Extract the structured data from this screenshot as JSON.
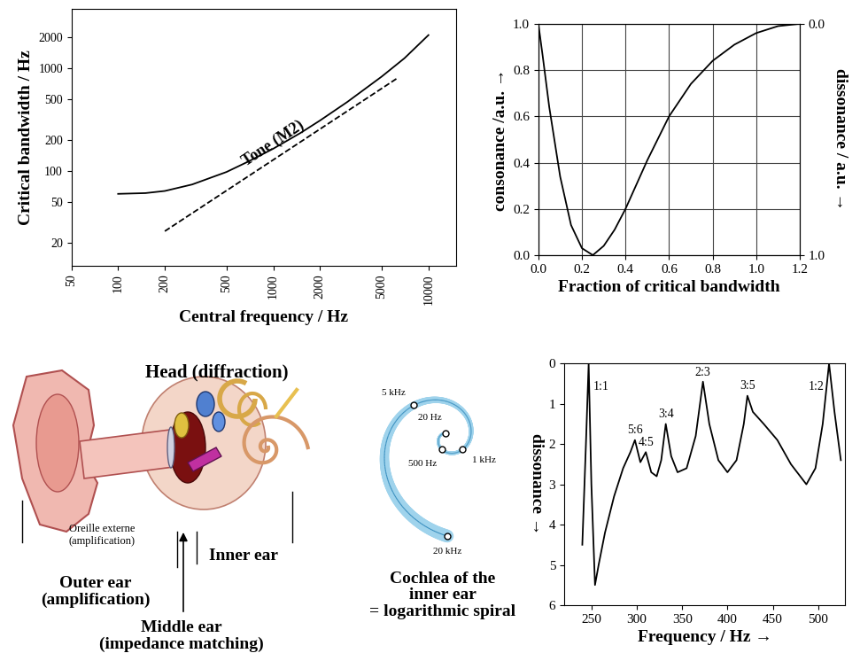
{
  "chart_data": [
    {
      "type": "line",
      "log": true,
      "grid": false,
      "xlabel": "Central frequency / Hz",
      "ylabel": "Critical bandwidth / Hz",
      "xlim": [
        50,
        15000
      ],
      "ylim": [
        12,
        3800
      ],
      "xticks": [
        50,
        100,
        200,
        500,
        1000,
        2000,
        5000,
        10000
      ],
      "yticks": [
        20,
        50,
        100,
        200,
        500,
        1000,
        2000
      ],
      "series": [
        {
          "color": "#000000",
          "line_style": "solid",
          "x": [
            100,
            150,
            200,
            300,
            500,
            700,
            1000,
            1500,
            2000,
            3000,
            5000,
            7000,
            10000
          ],
          "values": [
            60,
            61,
            64,
            74,
            98,
            125,
            165,
            235,
            310,
            470,
            830,
            1250,
            2100
          ]
        },
        {
          "name": "Tone (M2)",
          "color": "#000000",
          "line_style": "dashed",
          "x": [
            200,
            6300
          ],
          "values": [
            26,
            800
          ]
        }
      ]
    },
    {
      "type": "line",
      "grid": true,
      "xlabel": "Fraction of critical bandwidth",
      "ylabel": "consonance /a.u. →",
      "y2label": "dissonance / a.u. →",
      "xlim": [
        0,
        1.2
      ],
      "ylim": [
        0,
        1
      ],
      "y2lim": [
        1,
        0
      ],
      "xticks": [
        {
          "value": 0,
          "label": "0.0"
        },
        {
          "value": 0.2,
          "label": "0.2"
        },
        {
          "value": 0.4,
          "label": "0.4"
        },
        {
          "value": 0.6,
          "label": "0.6"
        },
        {
          "value": 0.8,
          "label": "0.8"
        },
        {
          "value": 1,
          "label": "1.0"
        },
        {
          "value": 1.2,
          "label": "1.2"
        }
      ],
      "yticks": [
        {
          "value": 0,
          "label": "0.0"
        },
        {
          "value": 0.2,
          "label": "0.2"
        },
        {
          "value": 0.4,
          "label": "0.4"
        },
        {
          "value": 0.6,
          "label": "0.6"
        },
        {
          "value": 0.8,
          "label": "0.8"
        },
        {
          "value": 1,
          "label": "1.0"
        }
      ],
      "y2ticks": [
        {
          "value": 0,
          "label": "0.0"
        },
        {
          "value": 1,
          "label": "1.0"
        }
      ],
      "series": [
        {
          "color": "#000000",
          "line_style": "solid",
          "x": [
            0,
            0.02,
            0.05,
            0.1,
            0.15,
            0.2,
            0.25,
            0.3,
            0.35,
            0.4,
            0.5,
            0.6,
            0.7,
            0.8,
            0.9,
            1.0,
            1.1,
            1.2
          ],
          "values": [
            1.0,
            0.86,
            0.64,
            0.34,
            0.13,
            0.03,
            0.0,
            0.04,
            0.11,
            0.2,
            0.41,
            0.6,
            0.74,
            0.84,
            0.91,
            0.96,
            0.99,
            1.0
          ]
        }
      ]
    },
    {
      "type": "line",
      "grid": false,
      "xlabel": "Frequency / Hz →",
      "ylabel": "dissonance →",
      "xlim": [
        220,
        530
      ],
      "ylim": [
        6,
        0
      ],
      "xticks": [
        250,
        300,
        350,
        400,
        450,
        500
      ],
      "yticks": [
        0,
        1,
        2,
        3,
        4,
        5,
        6
      ],
      "series": [
        {
          "color": "#000000",
          "line_style": "solid",
          "x": [
            240,
            244,
            247,
            250,
            254,
            258,
            265,
            275,
            285,
            293,
            298,
            304,
            310,
            316,
            322,
            327,
            332,
            338,
            345,
            355,
            365,
            373,
            380,
            390,
            400,
            410,
            418,
            422,
            428,
            440,
            455,
            470,
            487,
            497,
            505,
            512,
            518,
            525
          ],
          "values": [
            4.5,
            2.0,
            0.0,
            3.0,
            5.5,
            5.0,
            4.2,
            3.3,
            2.6,
            2.2,
            1.9,
            2.45,
            2.2,
            2.7,
            2.8,
            2.4,
            1.5,
            2.3,
            2.7,
            2.6,
            1.8,
            0.45,
            1.5,
            2.4,
            2.7,
            2.4,
            1.5,
            0.8,
            1.2,
            1.5,
            1.9,
            2.5,
            3.0,
            2.6,
            1.5,
            0.0,
            1.2,
            2.4
          ]
        }
      ],
      "annotations": [
        {
          "text": "1:1",
          "x": 247,
          "y": 0
        },
        {
          "text": "5:6",
          "x": 298,
          "y": 1.9
        },
        {
          "text": "4:5",
          "x": 310,
          "y": 2.2
        },
        {
          "text": "3:4",
          "x": 332,
          "y": 1.5
        },
        {
          "text": "2:3",
          "x": 373,
          "y": 0.45
        },
        {
          "text": "3:5",
          "x": 422,
          "y": 0.8
        },
        {
          "text": "1:2",
          "x": 512,
          "y": 0
        }
      ]
    }
  ],
  "diagram": {
    "head": "Head (diffraction)",
    "outer_ear_fr": "Oreille externe\n(amplification)",
    "outer_ear": "Outer ear\n(amplification)",
    "middle_ear": "Middle ear\n(impedance matching)",
    "inner_ear": "Inner ear",
    "cochlea": {
      "title": "Cochlea of the\ninner ear\n= logarithmic spiral",
      "marks": [
        "20 kHz",
        "5 kHz",
        "1 kHz",
        "500 Hz",
        "20 Hz"
      ]
    }
  }
}
